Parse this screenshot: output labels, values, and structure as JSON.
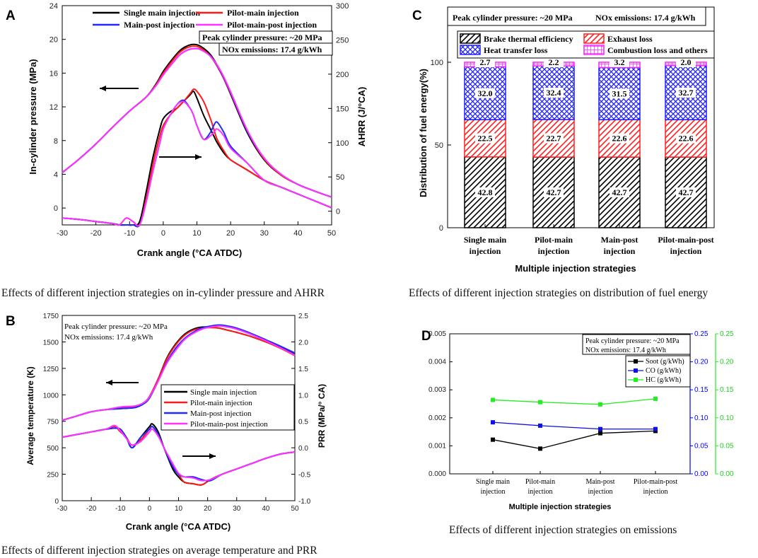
{
  "captions": {
    "a": "Effects of different injection strategies on in-cylinder pressure and AHRR",
    "b": "Effects of different injection strategies on average temperature and PRR",
    "c": "Effects of different injection strategies on distribution of fuel energy",
    "d": "Effects of different injection strategies on emissions"
  },
  "colors": {
    "single": "#000000",
    "pilot": "#ff1a1a",
    "post": "#1f2bff",
    "pilotpost": "#ff33ff",
    "soot": "#000000",
    "co": "#1010e0",
    "hc": "#22ee22"
  },
  "chart_data": [
    {
      "panel": "A",
      "type": "line",
      "xlabel": "Crank angle (°CA ATDC)",
      "ylabel": "In-cylinder pressure (MPa)",
      "y2label": "AHRR (J/°CA)",
      "xlim": [
        -30,
        50
      ],
      "ylim": [
        -2,
        24
      ],
      "y2lim": [
        -20,
        300
      ],
      "xticks": [
        -30,
        -20,
        -10,
        0,
        10,
        20,
        30,
        40,
        50
      ],
      "yticks": [
        0,
        4,
        8,
        12,
        16,
        20,
        24
      ],
      "y2ticks": [
        0,
        50,
        100,
        150,
        200,
        250,
        300
      ],
      "legend": [
        "Single main injection",
        "Pilot-main injection",
        "Main-post injection",
        "Pilot-main-post injection"
      ],
      "annotations": [
        "Peak cylinder pressure: ~20 MPa",
        "NOx emissions: 17.4 g/kWh"
      ],
      "pressure": {
        "x": [
          -30,
          -25,
          -20,
          -15,
          -10,
          -5,
          -2,
          0,
          3,
          5,
          7,
          9,
          11,
          14,
          17,
          20,
          25,
          30,
          35,
          40,
          45,
          50
        ],
        "single": [
          4.2,
          5.8,
          7.6,
          9.6,
          11.5,
          13.2,
          14.8,
          16.2,
          17.8,
          18.7,
          19.2,
          19.4,
          19.2,
          18.2,
          16.2,
          13.5,
          8.9,
          5.7,
          3.9,
          2.8,
          2.0,
          1.3
        ],
        "pilot": [
          4.2,
          5.8,
          7.6,
          9.6,
          11.5,
          13.2,
          14.7,
          16.0,
          17.6,
          18.5,
          19.0,
          19.2,
          19.0,
          18.0,
          16.1,
          13.6,
          9.1,
          5.8,
          3.9,
          2.8,
          2.0,
          1.3
        ],
        "post": [
          4.2,
          5.8,
          7.6,
          9.6,
          11.5,
          13.2,
          14.6,
          15.8,
          17.3,
          18.2,
          18.7,
          18.9,
          18.8,
          18.0,
          16.2,
          13.7,
          9.1,
          5.9,
          4.0,
          2.8,
          2.0,
          1.3
        ],
        "pilotpost": [
          4.2,
          5.8,
          7.6,
          9.6,
          11.5,
          13.2,
          14.6,
          15.8,
          17.3,
          18.2,
          18.7,
          18.9,
          18.8,
          18.0,
          16.3,
          13.8,
          9.2,
          5.9,
          4.0,
          2.8,
          2.0,
          1.3
        ]
      },
      "ahrr": {
        "x": [
          -30,
          -25,
          -20,
          -15,
          -13,
          -11,
          -9,
          -7,
          -5,
          -3,
          -1,
          0,
          2,
          4,
          6,
          8,
          9,
          10,
          12,
          14,
          15,
          16,
          18,
          20,
          25,
          30,
          35,
          40,
          45,
          50
        ],
        "single": [
          -10,
          -12,
          -15,
          -18,
          -20,
          -20,
          -20,
          -15,
          30,
          80,
          120,
          135,
          145,
          150,
          160,
          170,
          175,
          165,
          140,
          120,
          110,
          100,
          85,
          75,
          60,
          45,
          35,
          25,
          15,
          5
        ],
        "pilot": [
          -10,
          -12,
          -15,
          -18,
          -20,
          -10,
          -15,
          -20,
          20,
          70,
          110,
          125,
          140,
          150,
          160,
          172,
          178,
          175,
          160,
          135,
          120,
          105,
          88,
          75,
          60,
          45,
          35,
          25,
          15,
          5
        ],
        "post": [
          -10,
          -12,
          -15,
          -18,
          -20,
          -20,
          -20,
          -20,
          15,
          60,
          100,
          120,
          140,
          155,
          162,
          150,
          140,
          125,
          105,
          115,
          125,
          130,
          115,
          95,
          70,
          45,
          35,
          25,
          15,
          5
        ],
        "pilotpost": [
          -10,
          -12,
          -15,
          -18,
          -20,
          -10,
          -15,
          -20,
          15,
          60,
          100,
          120,
          140,
          155,
          160,
          150,
          140,
          125,
          105,
          110,
          115,
          120,
          110,
          92,
          70,
          45,
          35,
          25,
          15,
          5
        ]
      }
    },
    {
      "panel": "B",
      "type": "line",
      "xlabel": "Crank angle (°CA ATDC)",
      "ylabel": "Average temperature (K)",
      "y2label": "PRR (MPa/° CA)",
      "xlim": [
        -30,
        50
      ],
      "ylim": [
        0,
        1750
      ],
      "y2lim": [
        -1.0,
        2.5
      ],
      "xticks": [
        -30,
        -20,
        -10,
        0,
        10,
        20,
        30,
        40,
        50
      ],
      "yticks": [
        0,
        250,
        500,
        750,
        1000,
        1250,
        1500,
        1750
      ],
      "y2ticks": [
        -1.0,
        -0.5,
        0.0,
        0.5,
        1.0,
        1.5,
        2.0,
        2.5
      ],
      "legend": [
        "Single main injection",
        "Pilot-main injection",
        "Main-post injection",
        "Pilot-main-post injection"
      ],
      "annotations": [
        "Peak cylinder pressure: ~20 MPa",
        "NOx emissions: 17.4 g/kWh"
      ],
      "temperature": {
        "x": [
          -30,
          -25,
          -20,
          -15,
          -10,
          -5,
          -2,
          0,
          3,
          6,
          9,
          12,
          15,
          18,
          21,
          24,
          27,
          30,
          35,
          40,
          45,
          50
        ],
        "single": [
          760,
          800,
          840,
          860,
          870,
          880,
          920,
          980,
          1150,
          1350,
          1480,
          1570,
          1620,
          1640,
          1640,
          1630,
          1610,
          1590,
          1550,
          1500,
          1450,
          1390
        ],
        "pilot": [
          760,
          800,
          840,
          860,
          880,
          890,
          925,
          985,
          1150,
          1340,
          1470,
          1560,
          1610,
          1630,
          1635,
          1630,
          1610,
          1590,
          1550,
          1500,
          1440,
          1370
        ],
        "post": [
          760,
          800,
          840,
          860,
          870,
          880,
          915,
          970,
          1130,
          1310,
          1440,
          1530,
          1590,
          1630,
          1650,
          1660,
          1650,
          1630,
          1580,
          1520,
          1460,
          1395
        ],
        "pilotpost": [
          760,
          800,
          840,
          860,
          885,
          895,
          925,
          980,
          1130,
          1300,
          1420,
          1520,
          1580,
          1620,
          1640,
          1650,
          1640,
          1620,
          1570,
          1510,
          1445,
          1375
        ]
      },
      "prr": {
        "x": [
          -30,
          -25,
          -20,
          -15,
          -12,
          -10,
          -8,
          -6,
          -3,
          0,
          1,
          3,
          5,
          8,
          10,
          12,
          15,
          18,
          21,
          25,
          30,
          35,
          40,
          45,
          50
        ],
        "single": [
          0.2,
          0.25,
          0.3,
          0.35,
          0.37,
          0.35,
          0.2,
          0.0,
          0.2,
          0.4,
          0.45,
          0.3,
          0.0,
          -0.4,
          -0.55,
          -0.65,
          -0.68,
          -0.7,
          -0.6,
          -0.5,
          -0.4,
          -0.3,
          -0.2,
          -0.12,
          -0.08
        ],
        "pilot": [
          0.2,
          0.25,
          0.3,
          0.35,
          0.4,
          0.3,
          0.2,
          0.05,
          0.15,
          0.35,
          0.4,
          0.25,
          0.0,
          -0.35,
          -0.5,
          -0.65,
          -0.68,
          -0.7,
          -0.6,
          -0.5,
          -0.4,
          -0.3,
          -0.2,
          -0.12,
          -0.08
        ],
        "post": [
          0.2,
          0.25,
          0.3,
          0.35,
          0.37,
          0.35,
          0.2,
          0.0,
          0.2,
          0.35,
          0.4,
          0.25,
          0.0,
          -0.35,
          -0.5,
          -0.55,
          -0.55,
          -0.6,
          -0.62,
          -0.5,
          -0.4,
          -0.3,
          -0.2,
          -0.12,
          -0.08
        ],
        "pilotpost": [
          0.2,
          0.25,
          0.3,
          0.35,
          0.42,
          0.32,
          0.18,
          0.05,
          0.12,
          0.3,
          0.35,
          0.22,
          0.0,
          -0.3,
          -0.48,
          -0.55,
          -0.57,
          -0.62,
          -0.6,
          -0.5,
          -0.4,
          -0.3,
          -0.2,
          -0.12,
          -0.08
        ]
      }
    },
    {
      "panel": "C",
      "type": "bar",
      "stacked": true,
      "title": "",
      "xlabel": "Multiple injection strategies",
      "ylabel": "Distribution of  fuel energy(%)",
      "ylim": [
        0,
        100
      ],
      "yticks": [
        0,
        50,
        100
      ],
      "categories": [
        [
          "Single main",
          "injection"
        ],
        [
          "Pilot-main",
          "injection"
        ],
        [
          "Main-post",
          "injection"
        ],
        [
          "Pilot-main-post",
          "injection"
        ]
      ],
      "annotations": [
        "Peak cylinder pressure: ~20 MPa",
        "NOx emissions: 17.4 g/kWh"
      ],
      "series": [
        {
          "name": "Brake thermal efficiency",
          "values": [
            42.8,
            42.7,
            42.7,
            42.7
          ],
          "labels": [
            "42.8",
            "42.7",
            "42.7",
            "42.7"
          ],
          "color": "#000000",
          "pattern": "diag"
        },
        {
          "name": "Exhaust loss",
          "values": [
            22.5,
            22.7,
            22.6,
            22.6
          ],
          "labels": [
            "22.5",
            "22.7",
            "22.6",
            "22.6"
          ],
          "color": "#ff2020",
          "pattern": "diag2"
        },
        {
          "name": "Heat transfer loss",
          "values": [
            32.0,
            32.4,
            31.5,
            32.7
          ],
          "labels": [
            "32.0",
            "32.4",
            "31.5",
            "32.7"
          ],
          "color": "#2020ff",
          "pattern": "cross"
        },
        {
          "name": "Combustion loss and others",
          "values": [
            2.7,
            2.2,
            3.2,
            2.0
          ],
          "labels": [
            "2.7",
            "2.2",
            "3.2",
            "2.0"
          ],
          "color": "#ff20ff",
          "pattern": "grid"
        }
      ]
    },
    {
      "panel": "D",
      "type": "line",
      "xlabel": "Multiple injection strategies",
      "categories": [
        [
          "Single main",
          "injection"
        ],
        [
          "Pilot-main",
          "injection"
        ],
        [
          "Main-post",
          "injection"
        ],
        [
          "Pilot-main-post",
          "injection"
        ]
      ],
      "ylim": [
        0,
        0.005
      ],
      "y2lim": [
        0,
        0.25
      ],
      "y3lim": [
        0,
        0.25
      ],
      "yticks": [
        "0.000",
        "0.001",
        "0.002",
        "0.003",
        "0.004",
        "0.005"
      ],
      "y2ticks": [
        "0.00",
        "0.05",
        "0.10",
        "0.15",
        "0.20",
        "0.25"
      ],
      "y3ticks": [
        "0.00",
        "0.05",
        "0.10",
        "0.15",
        "0.20",
        "0.25"
      ],
      "annotations": [
        "Peak cylinder pressure: ~20 MPa",
        "NOx emissions: 17.4 g/kWh"
      ],
      "series": [
        {
          "name": "Soot (g/kWh)",
          "axis": "left",
          "values": [
            0.00122,
            0.0009,
            0.00145,
            0.00153
          ]
        },
        {
          "name": "CO (g/kWh)",
          "axis": "right1",
          "values": [
            0.092,
            0.086,
            0.08,
            0.08
          ]
        },
        {
          "name": "HC (g/kWh)",
          "axis": "right2",
          "values": [
            0.132,
            0.128,
            0.124,
            0.134
          ]
        }
      ]
    }
  ]
}
